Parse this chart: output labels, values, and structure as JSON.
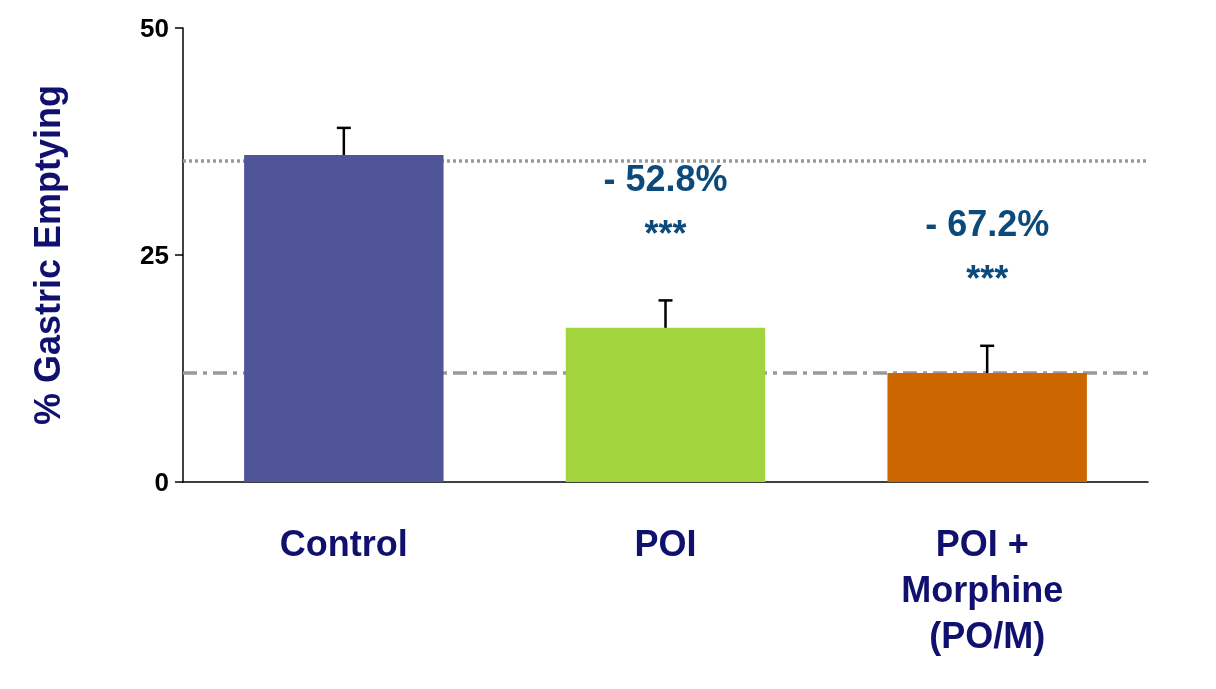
{
  "chart_data": {
    "type": "bar",
    "ylabel": "% Gastric Emptying",
    "categories": [
      "Control",
      "POI",
      "POI + Morphine (PO/M)"
    ],
    "values": [
      36,
      17,
      12
    ],
    "colors": [
      "#4f5597",
      "#a2d43e",
      "#cc6600"
    ],
    "errors": [
      3,
      3,
      3
    ],
    "ylim": [
      0,
      50
    ],
    "yticks": [
      0,
      25,
      50
    ],
    "grid": false,
    "ref_lines": [
      {
        "axis": "y",
        "value": 35.4,
        "color": "#999999",
        "line_style": "dotted"
      },
      {
        "axis": "y",
        "value": 12,
        "color": "#999999",
        "line_style": "dashed"
      }
    ],
    "annotations": [
      "- 52.8%",
      "***",
      "- 67.2%",
      "***"
    ]
  }
}
